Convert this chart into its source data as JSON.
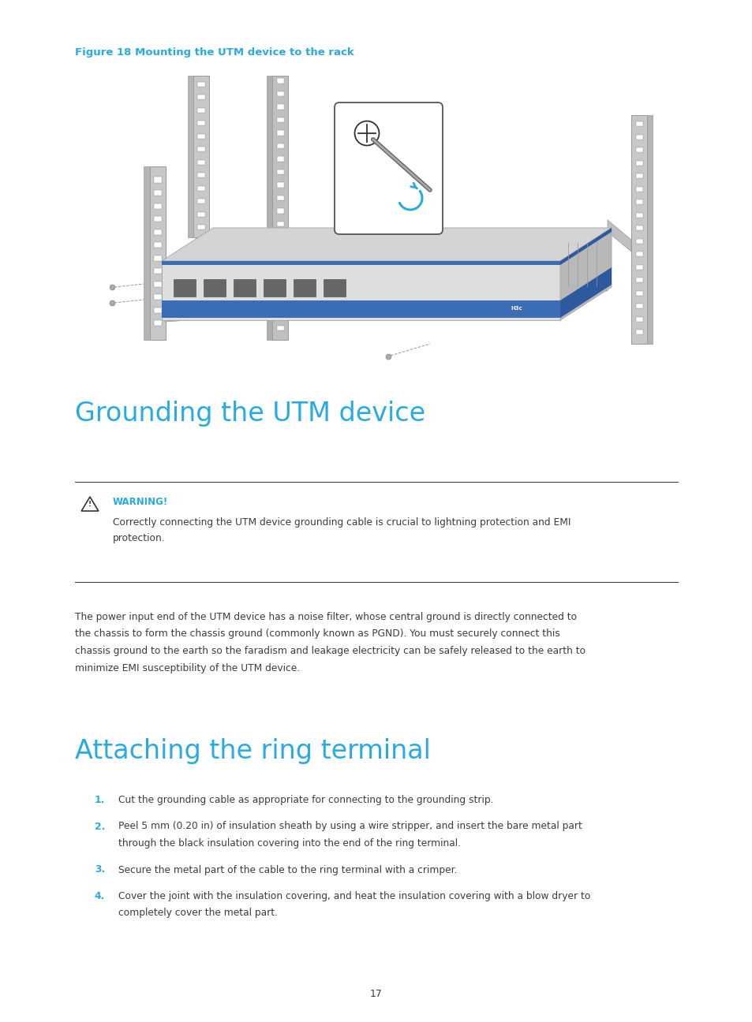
{
  "background_color": "#ffffff",
  "page_number": "17",
  "figure_caption": "Figure 18 Mounting the UTM device to the rack",
  "figure_caption_color": "#29abe2",
  "section1_title": "Grounding the UTM device",
  "section1_title_color": "#29abe2",
  "warning_label": "WARNING!",
  "warning_label_color": "#29abe2",
  "warning_text_line1": "Correctly connecting the UTM device grounding cable is crucial to lightning protection and EMI",
  "warning_text_line2": "protection.",
  "body_text_lines": [
    "The power input end of the UTM device has a noise filter, whose central ground is directly connected to",
    "the chassis to form the chassis ground (commonly known as PGND). You must securely connect this",
    "chassis ground to the earth so the faradism and leakage electricity can be safely released to the earth to",
    "minimize EMI susceptibility of the UTM device."
  ],
  "section2_title": "Attaching the ring terminal",
  "section2_title_color": "#29abe2",
  "list_items": [
    [
      "Cut the grounding cable as appropriate for connecting to the grounding strip."
    ],
    [
      "Peel 5 mm (0.20 in) of insulation sheath by using a wire stripper, and insert the bare metal part",
      "through the black insulation covering into the end of the ring terminal."
    ],
    [
      "Secure the metal part of the cable to the ring terminal with a crimper."
    ],
    [
      "Cover the joint with the insulation covering, and heat the insulation covering with a blow dryer to",
      "completely cover the metal part."
    ]
  ],
  "list_number_color": "#29abe2",
  "text_color": "#3c3c3c",
  "divider_color": "#333333"
}
